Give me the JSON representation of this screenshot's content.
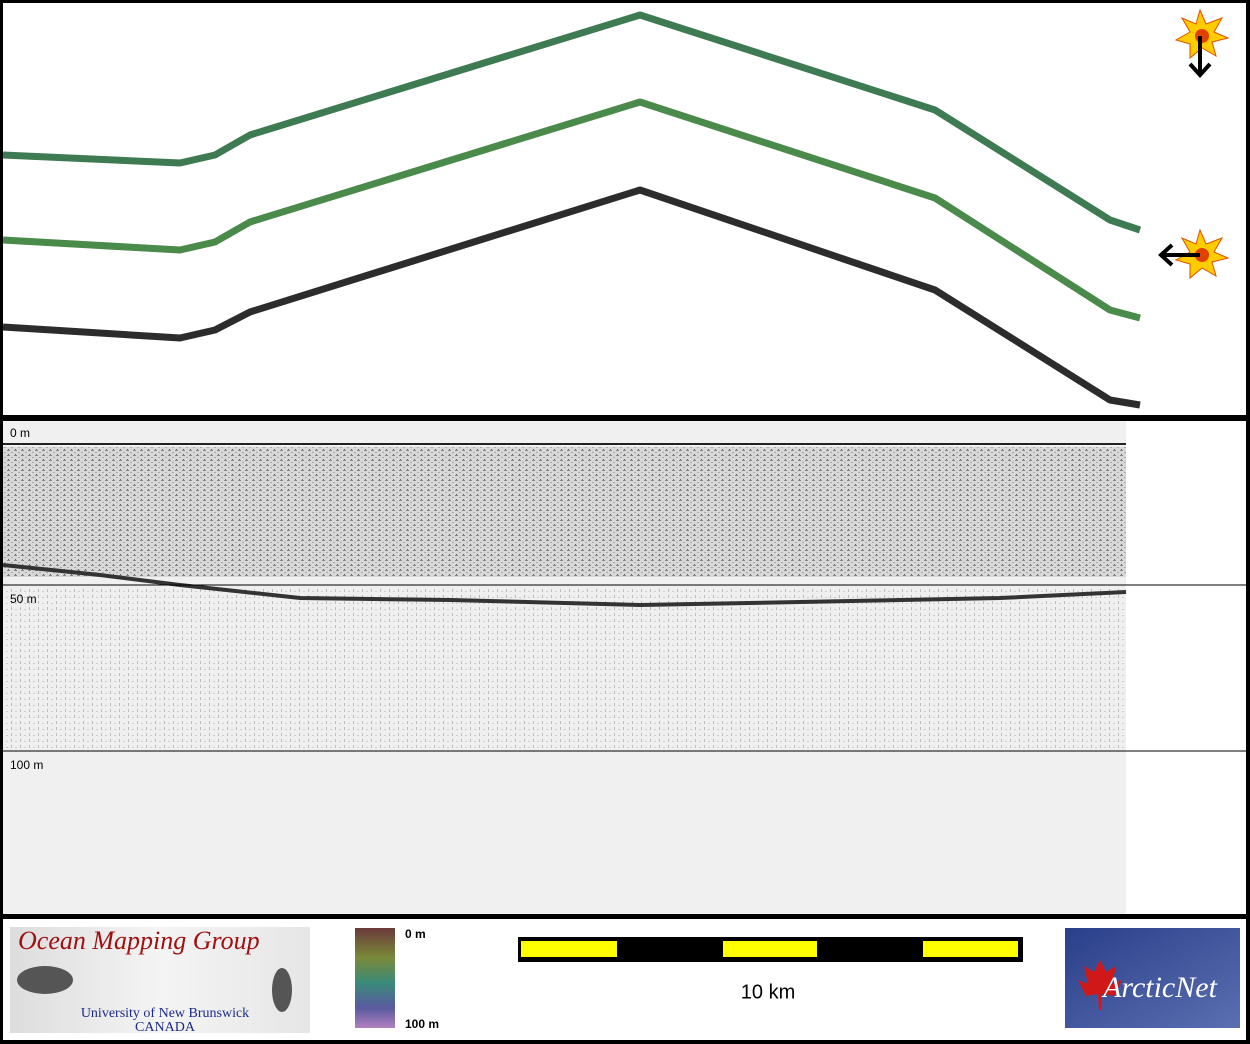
{
  "profile": {
    "depth_labels": [
      "0 m",
      "50 m",
      "100 m"
    ]
  },
  "logos": {
    "omg": {
      "title": "Ocean Mapping Group",
      "institution": "University of New Brunswick",
      "country": "CANADA"
    },
    "arcticnet": {
      "label": "ArcticNet"
    }
  },
  "colorbar": {
    "top_label": "0 m",
    "bottom_label": "100 m"
  },
  "scale_bar": {
    "label": "10 km"
  }
}
